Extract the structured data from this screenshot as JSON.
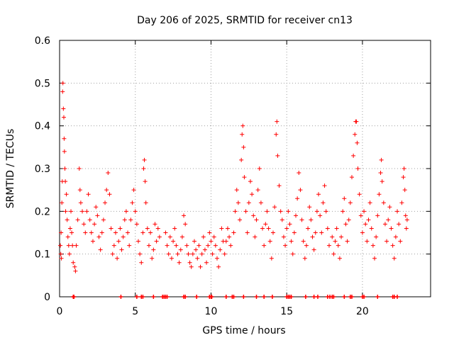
{
  "chart_data": {
    "type": "scatter",
    "title": "Day 206 of 2025, SRMTID for receiver cn13",
    "xlabel": "GPS time / hours",
    "ylabel": "SRMTID / TECUs",
    "xlim": [
      0,
      24.5
    ],
    "ylim": [
      0,
      0.6
    ],
    "xticks": [
      0,
      5,
      10,
      15,
      20
    ],
    "xtick_labels": [
      "0",
      "5",
      "10",
      "15",
      "20"
    ],
    "yticks": [
      0,
      0.1,
      0.2,
      0.3,
      0.4,
      0.5,
      0.6
    ],
    "ytick_labels": [
      "0",
      "0.1",
      "0.2",
      "0.3",
      "0.4",
      "0.5",
      "0.6"
    ],
    "grid": true,
    "marker": "+",
    "color": "#ff0000",
    "series": [
      {
        "name": "SRMTID cn13",
        "points": [
          [
            0.05,
            0.12
          ],
          [
            0.08,
            0.1
          ],
          [
            0.1,
            0.15
          ],
          [
            0.12,
            0.09
          ],
          [
            0.15,
            0.22
          ],
          [
            0.18,
            0.27
          ],
          [
            0.2,
            0.48
          ],
          [
            0.22,
            0.5
          ],
          [
            0.25,
            0.44
          ],
          [
            0.28,
            0.42
          ],
          [
            0.3,
            0.37
          ],
          [
            0.32,
            0.34
          ],
          [
            0.35,
            0.3
          ],
          [
            0.38,
            0.27
          ],
          [
            0.4,
            0.2
          ],
          [
            0.45,
            0.24
          ],
          [
            0.5,
            0.18
          ],
          [
            0.55,
            0.14
          ],
          [
            0.6,
            0.12
          ],
          [
            0.65,
            0.1
          ],
          [
            0.7,
            0.16
          ],
          [
            0.75,
            0.2
          ],
          [
            0.8,
            0.15
          ],
          [
            0.85,
            0.12
          ],
          [
            0.9,
            0.08
          ],
          [
            1.0,
            0.07
          ],
          [
            1.05,
            0.06
          ],
          [
            1.1,
            0.12
          ],
          [
            1.2,
            0.18
          ],
          [
            1.3,
            0.3
          ],
          [
            1.35,
            0.25
          ],
          [
            1.4,
            0.22
          ],
          [
            1.5,
            0.2
          ],
          [
            1.6,
            0.17
          ],
          [
            1.7,
            0.15
          ],
          [
            1.8,
            0.2
          ],
          [
            1.9,
            0.24
          ],
          [
            2.0,
            0.18
          ],
          [
            2.1,
            0.15
          ],
          [
            2.2,
            0.13
          ],
          [
            2.3,
            0.17
          ],
          [
            2.4,
            0.21
          ],
          [
            2.5,
            0.19
          ],
          [
            2.6,
            0.14
          ],
          [
            2.7,
            0.11
          ],
          [
            2.8,
            0.15
          ],
          [
            2.9,
            0.18
          ],
          [
            3.0,
            0.22
          ],
          [
            3.1,
            0.25
          ],
          [
            3.2,
            0.29
          ],
          [
            3.3,
            0.24
          ],
          [
            3.4,
            0.16
          ],
          [
            3.5,
            0.1
          ],
          [
            3.6,
            0.12
          ],
          [
            3.7,
            0.15
          ],
          [
            3.8,
            0.09
          ],
          [
            3.9,
            0.13
          ],
          [
            4.0,
            0.16
          ],
          [
            4.1,
            0.11
          ],
          [
            4.2,
            0.14
          ],
          [
            4.3,
            0.18
          ],
          [
            4.4,
            0.2
          ],
          [
            4.5,
            0.15
          ],
          [
            4.6,
            0.12
          ],
          [
            4.7,
            0.18
          ],
          [
            4.8,
            0.22
          ],
          [
            4.9,
            0.25
          ],
          [
            5.0,
            0.2
          ],
          [
            5.1,
            0.17
          ],
          [
            5.2,
            0.13
          ],
          [
            5.3,
            0.1
          ],
          [
            5.4,
            0.08
          ],
          [
            5.5,
            0.15
          ],
          [
            5.55,
            0.3
          ],
          [
            5.6,
            0.32
          ],
          [
            5.65,
            0.27
          ],
          [
            5.7,
            0.22
          ],
          [
            5.8,
            0.16
          ],
          [
            5.9,
            0.12
          ],
          [
            6.0,
            0.15
          ],
          [
            6.1,
            0.09
          ],
          [
            6.2,
            0.11
          ],
          [
            6.3,
            0.17
          ],
          [
            6.4,
            0.13
          ],
          [
            6.5,
            0.16
          ],
          [
            6.6,
            0.14
          ],
          [
            7.0,
            0.15
          ],
          [
            7.1,
            0.12
          ],
          [
            7.2,
            0.1
          ],
          [
            7.3,
            0.14
          ],
          [
            7.4,
            0.09
          ],
          [
            7.5,
            0.13
          ],
          [
            7.6,
            0.16
          ],
          [
            7.7,
            0.12
          ],
          [
            7.8,
            0.1
          ],
          [
            7.9,
            0.08
          ],
          [
            8.0,
            0.11
          ],
          [
            8.1,
            0.14
          ],
          [
            8.2,
            0.19
          ],
          [
            8.3,
            0.17
          ],
          [
            8.4,
            0.12
          ],
          [
            8.5,
            0.1
          ],
          [
            8.6,
            0.08
          ],
          [
            8.7,
            0.07
          ],
          [
            8.8,
            0.1
          ],
          [
            8.9,
            0.13
          ],
          [
            9.0,
            0.11
          ],
          [
            9.1,
            0.09
          ],
          [
            9.2,
            0.12
          ],
          [
            9.3,
            0.07
          ],
          [
            9.4,
            0.1
          ],
          [
            9.5,
            0.14
          ],
          [
            9.6,
            0.11
          ],
          [
            9.7,
            0.08
          ],
          [
            9.8,
            0.12
          ],
          [
            9.9,
            0.15
          ],
          [
            10.0,
            0.13
          ],
          [
            10.1,
            0.1
          ],
          [
            10.2,
            0.14
          ],
          [
            10.3,
            0.12
          ],
          [
            10.4,
            0.09
          ],
          [
            10.5,
            0.07
          ],
          [
            10.6,
            0.11
          ],
          [
            10.7,
            0.16
          ],
          [
            10.8,
            0.13
          ],
          [
            10.9,
            0.1
          ],
          [
            11.0,
            0.13
          ],
          [
            11.1,
            0.16
          ],
          [
            11.2,
            0.14
          ],
          [
            11.3,
            0.12
          ],
          [
            11.5,
            0.15
          ],
          [
            11.6,
            0.2
          ],
          [
            11.7,
            0.25
          ],
          [
            11.8,
            0.22
          ],
          [
            11.9,
            0.18
          ],
          [
            12.0,
            0.32
          ],
          [
            12.05,
            0.38
          ],
          [
            12.1,
            0.4
          ],
          [
            12.15,
            0.35
          ],
          [
            12.2,
            0.28
          ],
          [
            12.3,
            0.2
          ],
          [
            12.4,
            0.15
          ],
          [
            12.5,
            0.22
          ],
          [
            12.6,
            0.27
          ],
          [
            12.7,
            0.24
          ],
          [
            12.8,
            0.19
          ],
          [
            12.9,
            0.14
          ],
          [
            13.0,
            0.18
          ],
          [
            13.1,
            0.25
          ],
          [
            13.2,
            0.3
          ],
          [
            13.3,
            0.22
          ],
          [
            13.4,
            0.16
          ],
          [
            13.5,
            0.12
          ],
          [
            13.6,
            0.17
          ],
          [
            13.7,
            0.2
          ],
          [
            13.8,
            0.16
          ],
          [
            13.9,
            0.13
          ],
          [
            14.0,
            0.09
          ],
          [
            14.1,
            0.15
          ],
          [
            14.2,
            0.21
          ],
          [
            14.3,
            0.38
          ],
          [
            14.35,
            0.41
          ],
          [
            14.4,
            0.33
          ],
          [
            14.5,
            0.26
          ],
          [
            14.6,
            0.2
          ],
          [
            14.7,
            0.18
          ],
          [
            14.8,
            0.14
          ],
          [
            14.9,
            0.12
          ],
          [
            15.0,
            0.16
          ],
          [
            15.1,
            0.2
          ],
          [
            15.2,
            0.17
          ],
          [
            15.3,
            0.13
          ],
          [
            15.4,
            0.1
          ],
          [
            15.5,
            0.15
          ],
          [
            15.6,
            0.19
          ],
          [
            15.7,
            0.23
          ],
          [
            15.8,
            0.29
          ],
          [
            15.9,
            0.25
          ],
          [
            16.0,
            0.18
          ],
          [
            16.1,
            0.13
          ],
          [
            16.2,
            0.09
          ],
          [
            16.3,
            0.12
          ],
          [
            16.4,
            0.16
          ],
          [
            16.5,
            0.21
          ],
          [
            16.6,
            0.18
          ],
          [
            16.7,
            0.14
          ],
          [
            16.8,
            0.11
          ],
          [
            16.9,
            0.15
          ],
          [
            17.0,
            0.2
          ],
          [
            17.1,
            0.24
          ],
          [
            17.2,
            0.19
          ],
          [
            17.3,
            0.15
          ],
          [
            17.4,
            0.22
          ],
          [
            17.5,
            0.26
          ],
          [
            17.6,
            0.2
          ],
          [
            17.7,
            0.16
          ],
          [
            17.8,
            0.12
          ],
          [
            18.0,
            0.14
          ],
          [
            18.1,
            0.1
          ],
          [
            18.2,
            0.13
          ],
          [
            18.3,
            0.16
          ],
          [
            18.4,
            0.12
          ],
          [
            18.5,
            0.09
          ],
          [
            18.6,
            0.14
          ],
          [
            18.7,
            0.2
          ],
          [
            18.8,
            0.23
          ],
          [
            18.9,
            0.17
          ],
          [
            19.0,
            0.13
          ],
          [
            19.1,
            0.18
          ],
          [
            19.2,
            0.22
          ],
          [
            19.3,
            0.28
          ],
          [
            19.4,
            0.33
          ],
          [
            19.5,
            0.38
          ],
          [
            19.55,
            0.41
          ],
          [
            19.6,
            0.41
          ],
          [
            19.65,
            0.36
          ],
          [
            19.7,
            0.3
          ],
          [
            19.8,
            0.24
          ],
          [
            19.9,
            0.19
          ],
          [
            20.0,
            0.15
          ],
          [
            20.1,
            0.2
          ],
          [
            20.2,
            0.17
          ],
          [
            20.3,
            0.13
          ],
          [
            20.4,
            0.18
          ],
          [
            20.5,
            0.22
          ],
          [
            20.6,
            0.16
          ],
          [
            20.7,
            0.12
          ],
          [
            20.8,
            0.09
          ],
          [
            20.9,
            0.14
          ],
          [
            21.0,
            0.19
          ],
          [
            21.1,
            0.24
          ],
          [
            21.2,
            0.29
          ],
          [
            21.25,
            0.32
          ],
          [
            21.3,
            0.27
          ],
          [
            21.4,
            0.22
          ],
          [
            21.5,
            0.17
          ],
          [
            21.6,
            0.13
          ],
          [
            21.7,
            0.18
          ],
          [
            21.8,
            0.21
          ],
          [
            21.9,
            0.16
          ],
          [
            22.0,
            0.12
          ],
          [
            22.1,
            0.09
          ],
          [
            22.2,
            0.14
          ],
          [
            22.3,
            0.2
          ],
          [
            22.4,
            0.17
          ],
          [
            22.5,
            0.13
          ],
          [
            22.6,
            0.22
          ],
          [
            22.7,
            0.28
          ],
          [
            22.75,
            0.3
          ],
          [
            22.8,
            0.25
          ],
          [
            22.85,
            0.19
          ],
          [
            22.9,
            0.16
          ],
          [
            22.95,
            0.18
          ]
        ],
        "zero_points": [
          0.9,
          0.95,
          4.05,
          5.1,
          5.4,
          5.5,
          6.2,
          6.8,
          6.9,
          7.0,
          7.1,
          8.2,
          8.3,
          9.05,
          9.9,
          10.0,
          10.05,
          11.0,
          11.4,
          11.5,
          12.15,
          13.0,
          13.5,
          14.05,
          15.0,
          15.1,
          15.2,
          15.3,
          16.25,
          16.8,
          17.05,
          17.7,
          17.85,
          18.0,
          18.1,
          18.8,
          19.2,
          19.3,
          20.0,
          20.1,
          21.0,
          22.0,
          22.1,
          22.3
        ]
      }
    ]
  }
}
